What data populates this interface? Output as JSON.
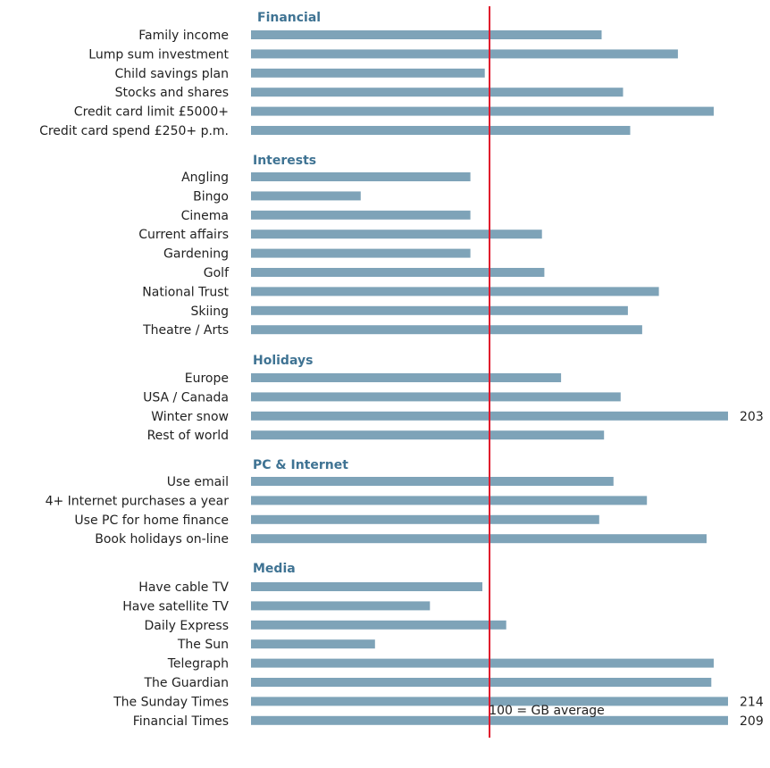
{
  "chart_data": {
    "type": "bar",
    "orientation": "horizontal",
    "baseline_value": 100,
    "baseline_label": "100 = GB average",
    "xlim": [
      0,
      203
    ],
    "colors": {
      "bar": "#7ea3b8",
      "baseline": "#e0182d",
      "group_heading": "#3f7393"
    },
    "groups": [
      {
        "name": "Financial",
        "items": [
          {
            "label": "Family income",
            "value": 147
          },
          {
            "label": "Lump sum investment",
            "value": 179
          },
          {
            "label": "Child savings plan",
            "value": 98
          },
          {
            "label": "Stocks and shares",
            "value": 156
          },
          {
            "label": "Credit card limit £5000+",
            "value": 194
          },
          {
            "label": "Credit card spend £250+ p.m.",
            "value": 159
          }
        ]
      },
      {
        "name": "Interests",
        "items": [
          {
            "label": "Angling",
            "value": 92
          },
          {
            "label": "Bingo",
            "value": 46
          },
          {
            "label": "Cinema",
            "value": 92
          },
          {
            "label": "Current affairs",
            "value": 122
          },
          {
            "label": "Gardening",
            "value": 92
          },
          {
            "label": "Golf",
            "value": 123
          },
          {
            "label": "National Trust",
            "value": 171
          },
          {
            "label": "Skiing",
            "value": 158
          },
          {
            "label": "Theatre / Arts",
            "value": 164
          }
        ]
      },
      {
        "name": "Holidays",
        "items": [
          {
            "label": "Europe",
            "value": 130
          },
          {
            "label": "USA / Canada",
            "value": 155
          },
          {
            "label": "Winter snow",
            "value": 203,
            "data_label": "203"
          },
          {
            "label": "Rest of world",
            "value": 148
          }
        ]
      },
      {
        "name": "PC & Internet",
        "items": [
          {
            "label": "Use email",
            "value": 152
          },
          {
            "label": "4+ Internet purchases a year",
            "value": 166
          },
          {
            "label": "Use PC for home finance",
            "value": 146
          },
          {
            "label": "Book holidays on-line",
            "value": 191
          }
        ]
      },
      {
        "name": "Media",
        "items": [
          {
            "label": "Have cable TV",
            "value": 97
          },
          {
            "label": "Have satellite TV",
            "value": 75
          },
          {
            "label": "Daily Express",
            "value": 107
          },
          {
            "label": "The Sun",
            "value": 52
          },
          {
            "label": "Telegraph",
            "value": 194
          },
          {
            "label": "The Guardian",
            "value": 193
          },
          {
            "label": "The Sunday Times",
            "value": 214,
            "data_label": "214"
          },
          {
            "label": "Financial Times",
            "value": 209,
            "data_label": "209"
          }
        ]
      }
    ]
  }
}
